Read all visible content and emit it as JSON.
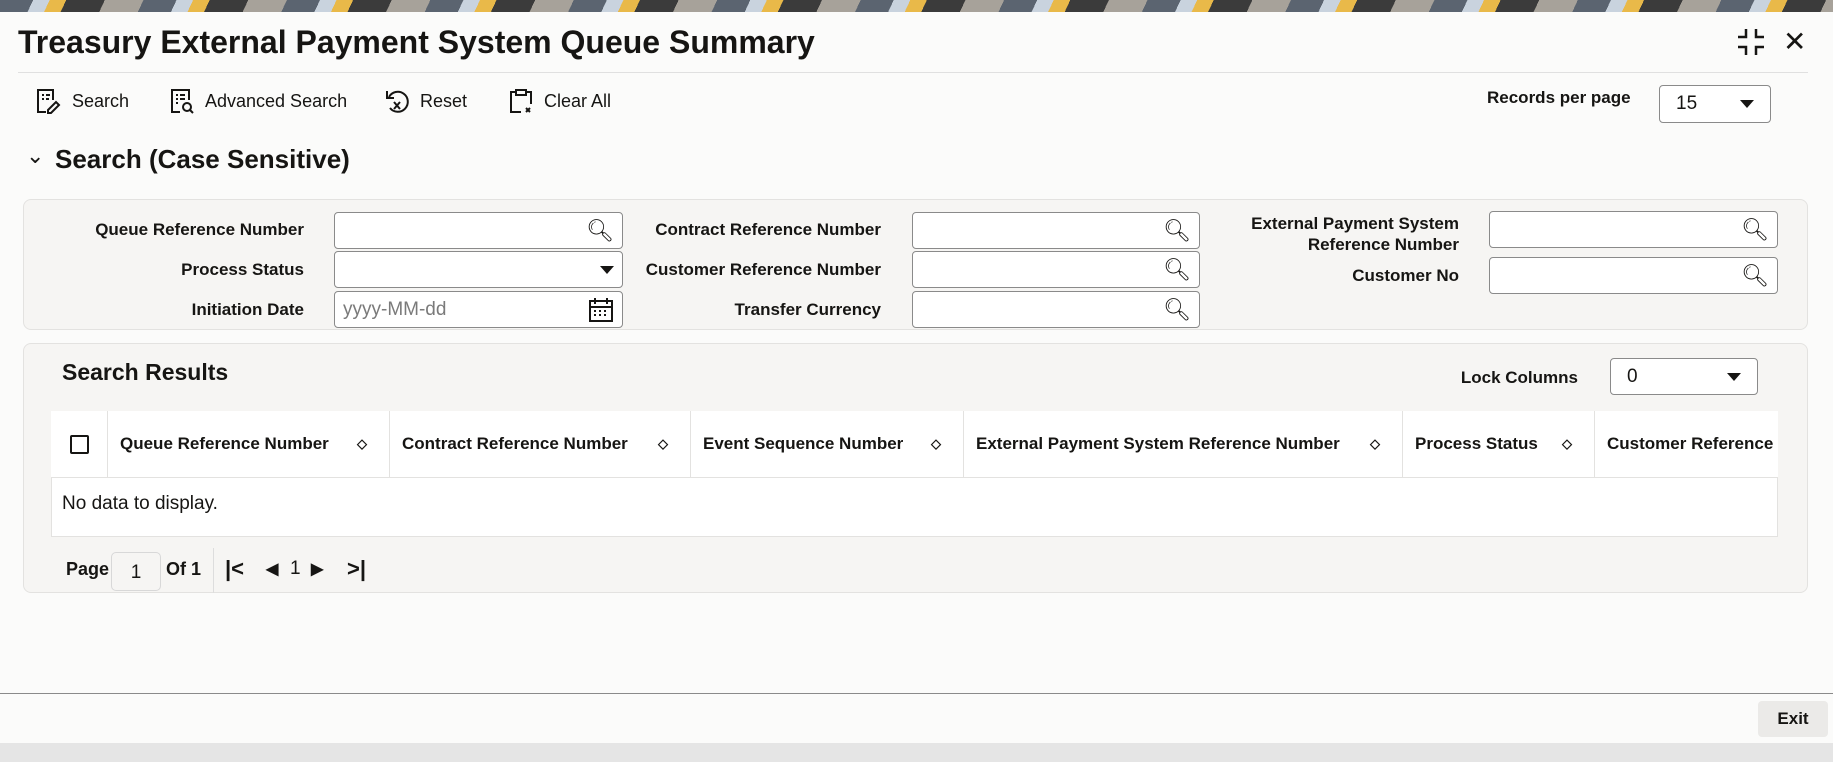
{
  "header": {
    "title": "Treasury External Payment System Queue Summary"
  },
  "toolbar": {
    "search": "Search",
    "advanced_search": "Advanced Search",
    "reset": "Reset",
    "clear_all": "Clear All",
    "records_per_page_label": "Records per page",
    "records_per_page": "15"
  },
  "search_section": {
    "title": "Search (Case Sensitive)",
    "fields": {
      "queue_ref": "Queue Reference Number",
      "process_status": "Process Status",
      "initiation_date": "Initiation Date",
      "initiation_date_placeholder": "yyyy-MM-dd",
      "contract_ref": "Contract Reference Number",
      "customer_ref": "Customer Reference Number",
      "transfer_currency": "Transfer Currency",
      "ext_ref_line1": "External Payment System",
      "ext_ref_line2": "Reference Number",
      "customer_no": "Customer No"
    }
  },
  "results": {
    "title": "Search Results",
    "lock_columns_label": "Lock Columns",
    "lock_columns": "0",
    "columns": [
      "Queue Reference Number",
      "Contract Reference Number",
      "Event Sequence Number",
      "External Payment System Reference Number",
      "Process Status",
      "Customer Reference Number"
    ],
    "empty": "No data to display.",
    "pagination": {
      "page_label": "Page",
      "page": "1",
      "of": "Of 1",
      "current": "1"
    }
  },
  "footer": {
    "exit": "Exit"
  }
}
